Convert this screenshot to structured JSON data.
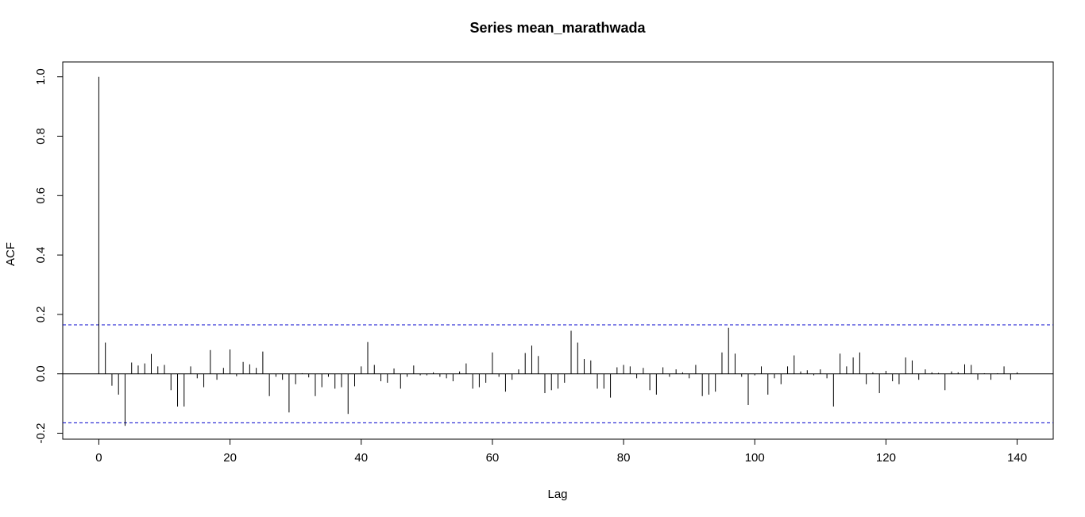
{
  "chart_data": {
    "type": "bar",
    "title": "Series  mean_marathwada",
    "xlabel": "Lag",
    "ylabel": "ACF",
    "xlim": [
      -5.5,
      145.5
    ],
    "ylim": [
      -0.22,
      1.05
    ],
    "x_ticks": [
      0,
      20,
      40,
      60,
      80,
      100,
      120,
      140
    ],
    "y_ticks": [
      -0.2,
      0.0,
      0.2,
      0.4,
      0.6,
      0.8,
      1.0
    ],
    "x_tick_labels": [
      "0",
      "20",
      "40",
      "60",
      "80",
      "100",
      "120",
      "140"
    ],
    "y_tick_labels": [
      "-0.2",
      "0.0",
      "0.2",
      "0.4",
      "0.6",
      "0.8",
      "1.0"
    ],
    "confidence_bounds": [
      0.165,
      -0.165
    ],
    "series": [
      {
        "lags": [
          0,
          1,
          2,
          3,
          4,
          5,
          6,
          7,
          8,
          9,
          10,
          11,
          12,
          13,
          14,
          15,
          16,
          17,
          18,
          19,
          20,
          21,
          22,
          23,
          24,
          25,
          26,
          27,
          28,
          29,
          30,
          31,
          32,
          33,
          34,
          35,
          36,
          37,
          38,
          39,
          40,
          41,
          42,
          43,
          44,
          45,
          46,
          47,
          48,
          49,
          50,
          51,
          52,
          53,
          54,
          55,
          56,
          57,
          58,
          59,
          60,
          61,
          62,
          63,
          64,
          65,
          66,
          67,
          68,
          69,
          70,
          71,
          72,
          73,
          74,
          75,
          76,
          77,
          78,
          79,
          80,
          81,
          82,
          83,
          84,
          85,
          86,
          87,
          88,
          89,
          90,
          91,
          92,
          93,
          94,
          95,
          96,
          97,
          98,
          99,
          100,
          101,
          102,
          103,
          104,
          105,
          106,
          107,
          108,
          109,
          110,
          111,
          112,
          113,
          114,
          115,
          116,
          117,
          118,
          119,
          120,
          121,
          122,
          123,
          124,
          125,
          126,
          127,
          128,
          129,
          130,
          131,
          132,
          133,
          134,
          135,
          136,
          137,
          138,
          139,
          140
        ],
        "values": [
          1.0,
          0.105,
          -0.04,
          -0.07,
          -0.175,
          0.038,
          0.028,
          0.035,
          0.067,
          0.025,
          0.03,
          -0.055,
          -0.11,
          -0.11,
          0.025,
          -0.015,
          -0.045,
          0.08,
          -0.02,
          0.02,
          0.082,
          -0.008,
          0.04,
          0.032,
          0.02,
          0.075,
          -0.075,
          -0.01,
          -0.02,
          -0.13,
          -0.035,
          0.002,
          -0.012,
          -0.075,
          -0.045,
          -0.01,
          -0.05,
          -0.045,
          -0.135,
          -0.042,
          0.025,
          0.107,
          0.03,
          -0.025,
          -0.03,
          0.018,
          -0.05,
          -0.01,
          0.028,
          -0.005,
          -0.005,
          0.005,
          -0.01,
          -0.015,
          -0.025,
          0.008,
          0.035,
          -0.05,
          -0.045,
          -0.03,
          0.072,
          -0.01,
          -0.06,
          -0.02,
          0.015,
          0.07,
          0.095,
          0.06,
          -0.065,
          -0.055,
          -0.05,
          -0.03,
          0.145,
          0.105,
          0.05,
          0.045,
          -0.05,
          -0.05,
          -0.08,
          0.022,
          0.03,
          0.025,
          -0.015,
          0.02,
          -0.055,
          -0.07,
          0.022,
          -0.01,
          0.015,
          0.005,
          -0.015,
          0.03,
          -0.075,
          -0.07,
          -0.06,
          0.072,
          0.155,
          0.068,
          -0.01,
          -0.105,
          -0.005,
          0.025,
          -0.07,
          -0.015,
          -0.035,
          0.025,
          0.062,
          0.008,
          0.012,
          -0.005,
          0.015,
          -0.015,
          -0.11,
          0.068,
          0.025,
          0.055,
          0.072,
          -0.035,
          0.005,
          -0.065,
          0.01,
          -0.025,
          -0.035,
          0.055,
          0.045,
          -0.02,
          0.015,
          0.005,
          0.003,
          -0.055,
          0.008,
          0.005,
          0.032,
          0.03,
          -0.02,
          0.002,
          -0.02,
          0.002,
          0.025,
          -0.02,
          0.005
        ]
      }
    ],
    "grid": false,
    "legend": "none"
  }
}
